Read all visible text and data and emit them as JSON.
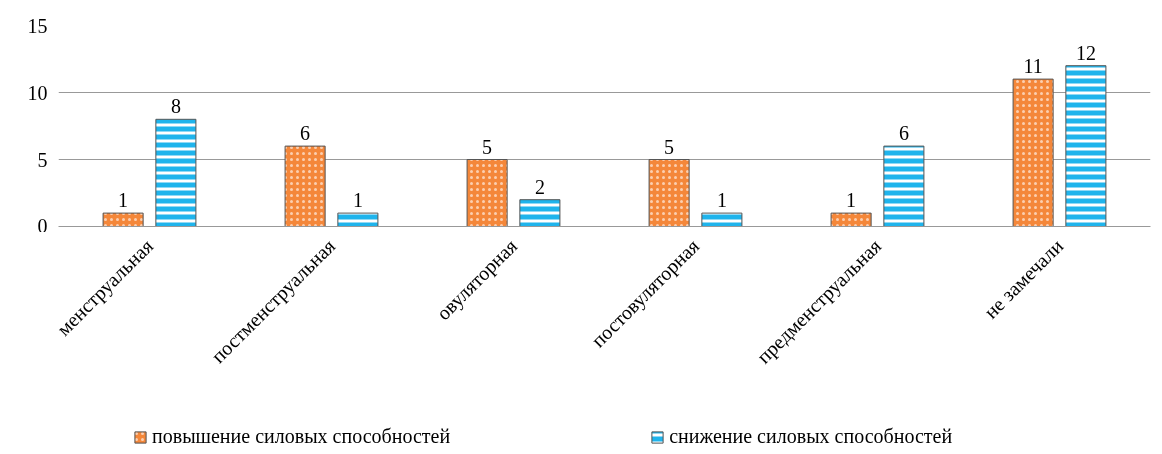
{
  "chart_data": {
    "type": "bar",
    "categories": [
      "менструальная",
      "постменструальная",
      "овуляторная",
      "постовуляторная",
      "предменструальная",
      "не замечали"
    ],
    "series": [
      {
        "name": "повышение силовых способностей",
        "color": "#f4873a",
        "values": [
          1,
          6,
          5,
          5,
          1,
          11
        ]
      },
      {
        "name": "снижение силовых способностей",
        "color": "#1fb4ec",
        "values": [
          8,
          1,
          2,
          1,
          6,
          12
        ]
      }
    ],
    "ylim": [
      0,
      15
    ],
    "yticks": [
      0,
      5,
      10,
      15
    ],
    "grid": "y",
    "legend": "bottom",
    "data_labels": true
  }
}
